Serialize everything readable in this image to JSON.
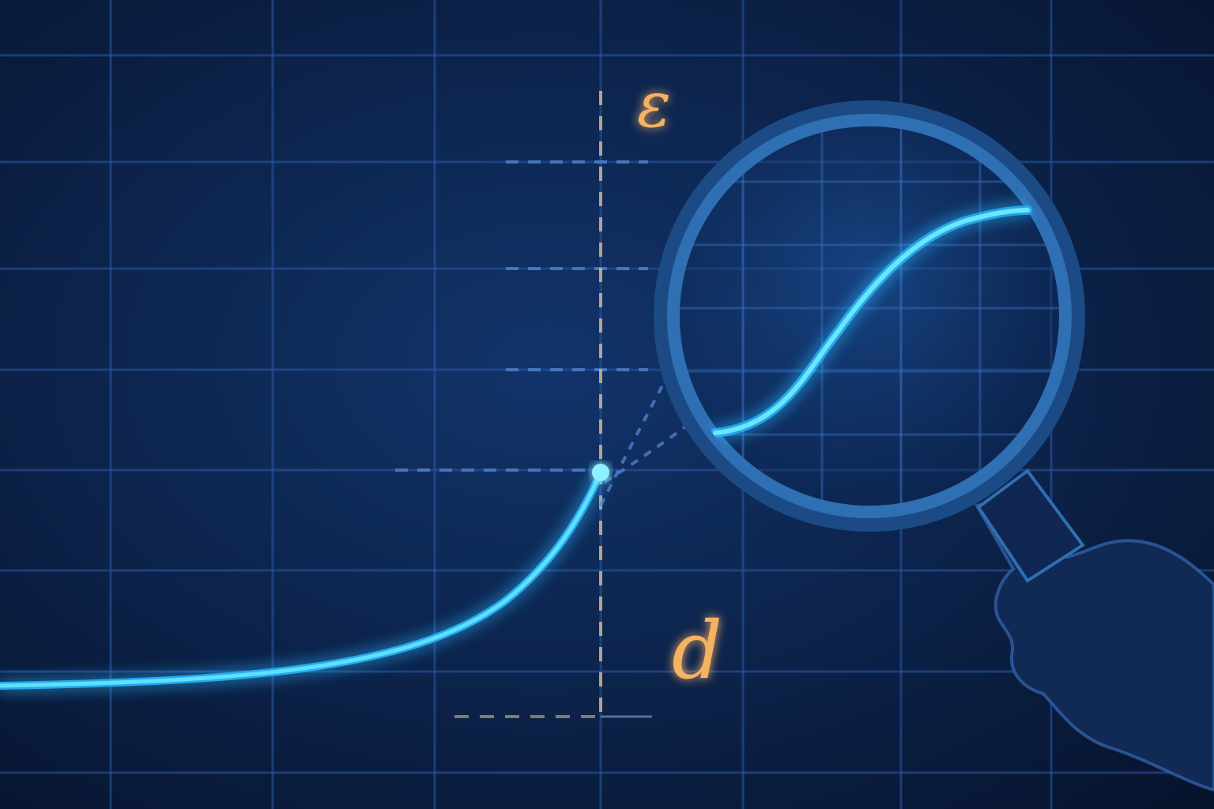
{
  "labels": {
    "epsilon": "ε",
    "delta": "d"
  },
  "colors": {
    "background_center": "#12346b",
    "background_edge": "#07142e",
    "grid_line": "#2a5aa6",
    "curve": "#5fe0ff",
    "curve_glow": "#2bb8ff",
    "label": "#f5b263",
    "guide_dash": "#d6b48a",
    "guide_dash_blue": "#4c7fc9",
    "lens_rim": "#2f6fb3",
    "lens_rim_outer": "#1b4a85",
    "hand_silhouette": "#112a55",
    "hand_outline": "#3468b0"
  },
  "icons": {
    "lens": "magnifying-glass-icon",
    "hand": "hand-silhouette-icon",
    "point": "limit-point-marker"
  }
}
